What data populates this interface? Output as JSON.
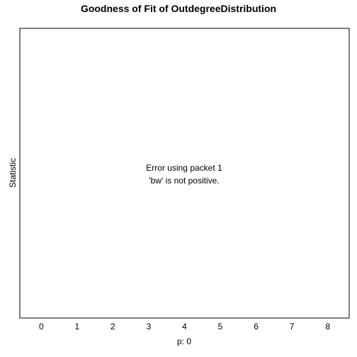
{
  "chart_data": {
    "type": "line",
    "title": "Goodness of Fit of OutdegreeDistribution",
    "xlabel": "p: 0",
    "ylabel": "Statistic",
    "x_ticks": [
      "0",
      "1",
      "2",
      "3",
      "4",
      "5",
      "6",
      "7",
      "8"
    ],
    "xlim": [
      -0.6,
      8.6
    ],
    "series": [],
    "grid": false,
    "error_message": {
      "line1": "Error using packet 1",
      "line2": "'bw' is not positive."
    }
  }
}
